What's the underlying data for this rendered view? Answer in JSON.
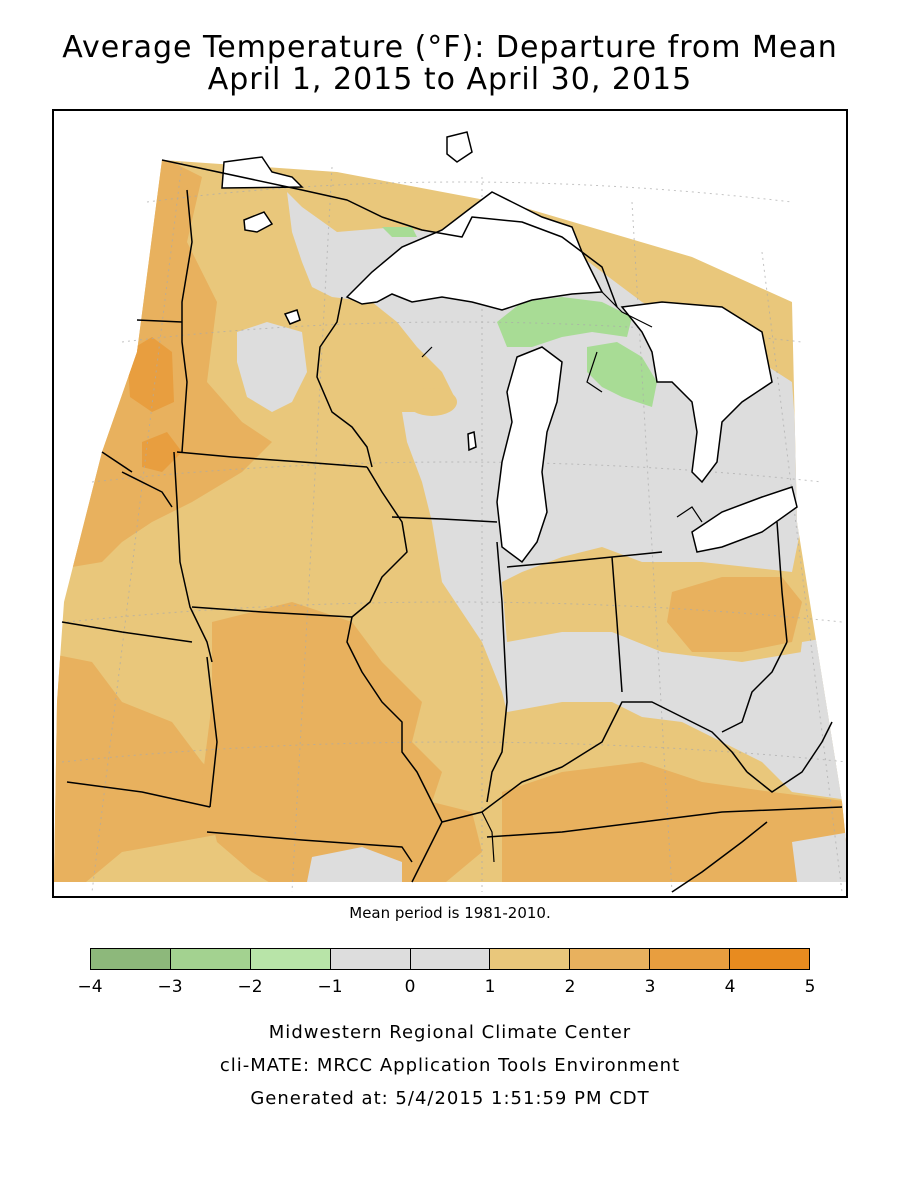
{
  "title_line1": "Average Temperature (°F): Departure from Mean",
  "title_line2": "April 1, 2015 to April 30, 2015",
  "mean_period": "Mean period is 1981-2010.",
  "legend": {
    "bins": [
      {
        "from": -4,
        "to": -3,
        "color": "#8db87b"
      },
      {
        "from": -3,
        "to": -2,
        "color": "#a3d290"
      },
      {
        "from": -2,
        "to": -1,
        "color": "#b8e4a8"
      },
      {
        "from": -1,
        "to": 0,
        "color": "#dddddd"
      },
      {
        "from": 0,
        "to": 1,
        "color": "#dddddd"
      },
      {
        "from": 1,
        "to": 2,
        "color": "#e9c77b"
      },
      {
        "from": 2,
        "to": 3,
        "color": "#e8b15e"
      },
      {
        "from": 3,
        "to": 4,
        "color": "#e89e3f"
      },
      {
        "from": 4,
        "to": 5,
        "color": "#e88b1f"
      }
    ],
    "ticks": [
      "−4",
      "−3",
      "−2",
      "−1",
      "0",
      "1",
      "2",
      "3",
      "4",
      "5"
    ]
  },
  "footer": {
    "line1": "Midwestern Regional Climate Center",
    "line2": "cli-MATE: MRCC Application Tools Environment",
    "line3": "Generated at: 5/4/2015 1:51:59 PM CDT"
  },
  "colors": {
    "gray": "#dddddd",
    "light_orange": "#e9c77b",
    "mid_orange": "#e8b15e",
    "dark_orange": "#e89e3f",
    "green": "#a8dc95",
    "water": "#ffffff"
  }
}
